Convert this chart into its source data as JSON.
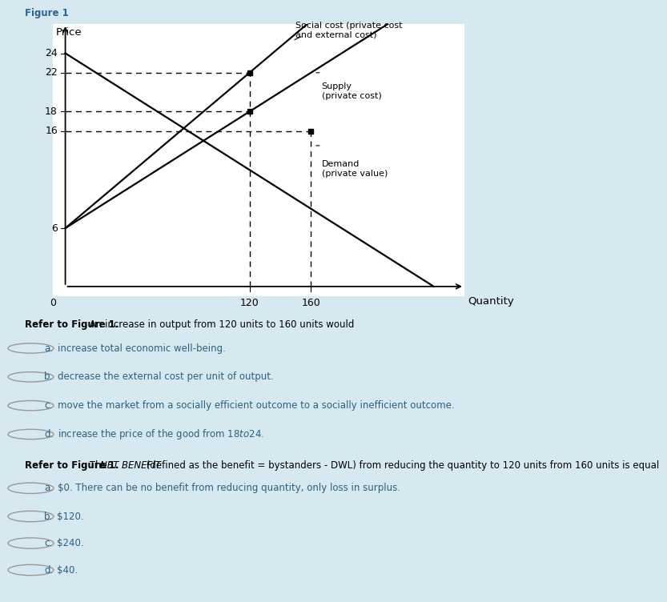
{
  "figure_title": "Figure 1",
  "bg_color": "#d6e8f0",
  "plot_bg_color": "#ffffff",
  "supply_points": [
    [
      0,
      6
    ],
    [
      240,
      30
    ]
  ],
  "social_cost_points": [
    [
      0,
      6
    ],
    [
      180,
      30
    ]
  ],
  "demand_points": [
    [
      0,
      24
    ],
    [
      240,
      0
    ]
  ],
  "supply_label": "Supply\n(private cost)",
  "social_cost_label": "Social cost (private cost\nand external cost)",
  "demand_label": "Demand\n(private value)",
  "ytick_vals": [
    6,
    16,
    18,
    22,
    24
  ],
  "xtick_vals": [
    120,
    160
  ],
  "xlabel": "Quantity",
  "ylabel": "Price",
  "xmax": 260,
  "ymax": 27,
  "title_color": "#2a6496",
  "question1_bold": "Refer to Figure 1.",
  "question1_rest": " An increase in output from 120 units to 160 units would",
  "q1_options": [
    [
      "a.",
      "increase total economic well-being."
    ],
    [
      "b.",
      "decrease the external cost per unit of output."
    ],
    [
      "c.",
      "move the market from a socially efficient outcome to a socially inefficient outcome."
    ],
    [
      "d.",
      "increase the price of the good from $18 to $24."
    ]
  ],
  "question2_bold": "Refer to Figure 1.",
  "question2_the": " The ",
  "question2_italic": "NET BENEFIT",
  "question2_rest": " (defined as the benefit = bystanders - DWL) from reducing the quantity to 120 units from 160 units is equal",
  "q2_options": [
    [
      "a.",
      "$0. There can be no benefit from reducing quantity, only loss in surplus."
    ],
    [
      "b.",
      "$120."
    ],
    [
      "c.",
      "$240."
    ],
    [
      "d.",
      "$40."
    ]
  ],
  "option_text_color": "#2a6080",
  "circle_color": "#888888"
}
